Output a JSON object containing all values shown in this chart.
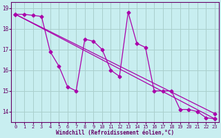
{
  "xlabel": "Windchill (Refroidissement éolien,°C)",
  "xlim": [
    -0.5,
    23.5
  ],
  "ylim": [
    13.5,
    19.3
  ],
  "yticks": [
    14,
    15,
    16,
    17,
    18,
    19
  ],
  "xticks": [
    0,
    1,
    2,
    3,
    4,
    5,
    6,
    7,
    8,
    9,
    10,
    11,
    12,
    13,
    14,
    15,
    16,
    17,
    18,
    19,
    20,
    21,
    22,
    23
  ],
  "bg_color": "#c8eef0",
  "grid_color": "#aacfcc",
  "line_color": "#aa00aa",
  "line1_x": [
    0,
    1,
    2,
    3,
    4,
    5,
    6,
    7,
    8,
    9,
    10,
    11,
    12,
    13,
    14,
    15,
    16,
    17,
    18,
    19,
    20,
    21,
    22,
    23
  ],
  "line1_y": [
    18.7,
    18.7,
    18.65,
    18.6,
    16.9,
    16.2,
    15.2,
    15.0,
    17.5,
    17.4,
    17.0,
    16.0,
    15.7,
    18.8,
    17.3,
    17.1,
    15.0,
    15.0,
    15.0,
    14.1,
    14.1,
    14.0,
    13.7,
    13.65
  ],
  "line2_x": [
    0,
    23
  ],
  "line2_y": [
    18.7,
    13.65
  ],
  "line3_x": [
    0,
    23
  ],
  "line3_y": [
    18.7,
    13.9
  ],
  "marker": "D",
  "markersize": 2.5,
  "linewidth": 0.9
}
